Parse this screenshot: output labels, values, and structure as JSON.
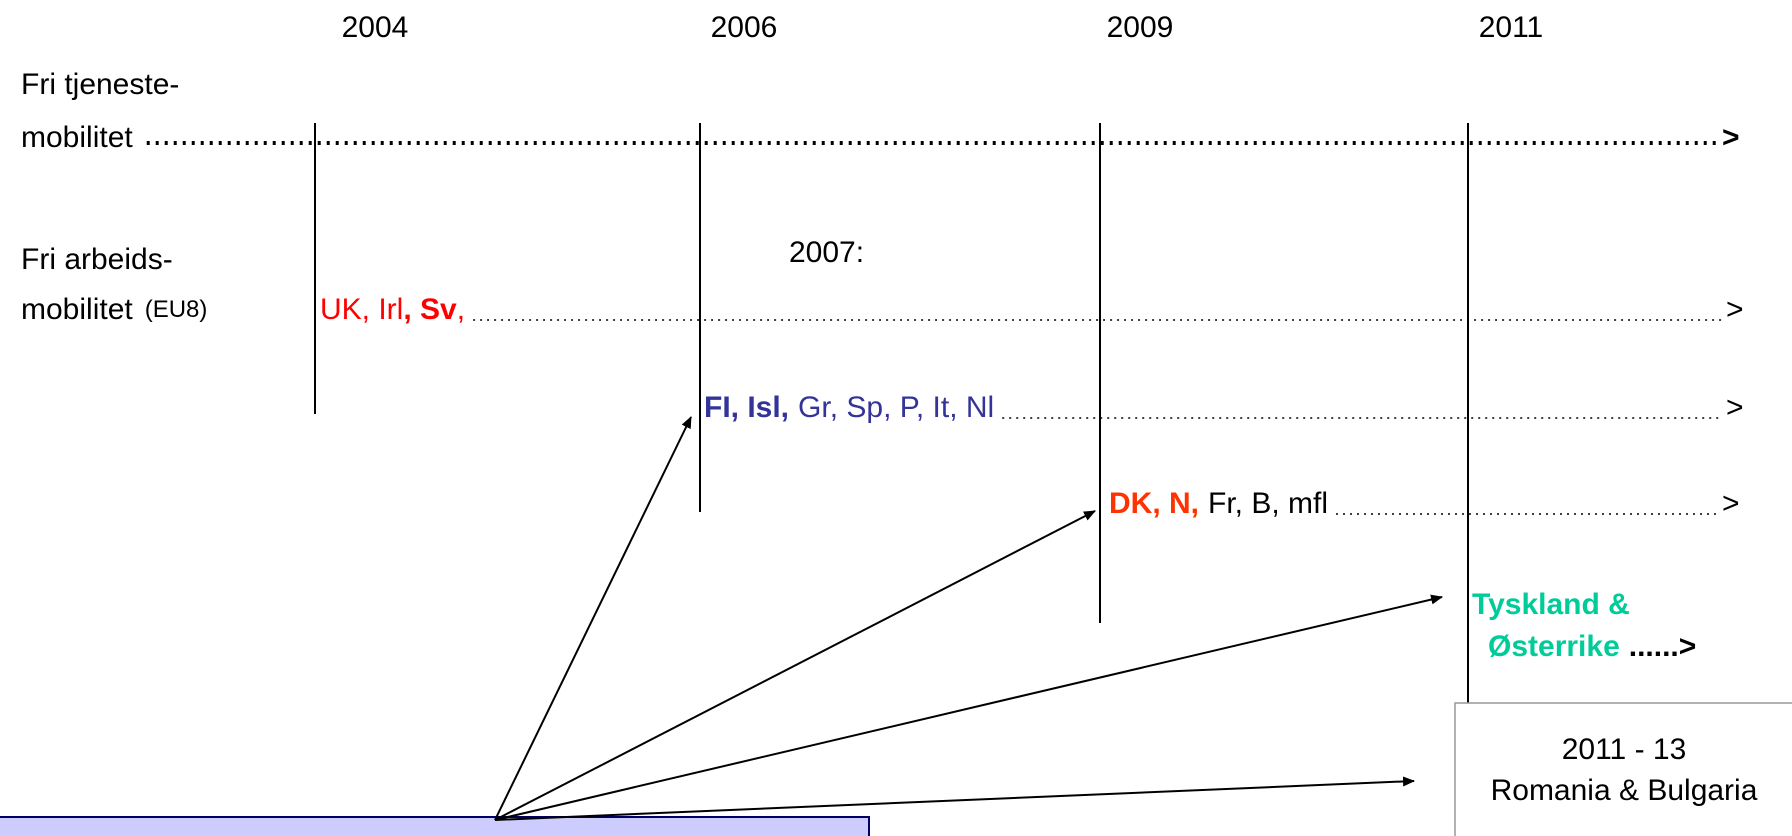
{
  "years": [
    "2004",
    "2006",
    "2009",
    "2011"
  ],
  "service": {
    "label_line1": "Fri tjeneste-",
    "label_line2": "mobilitet",
    "end": ">"
  },
  "labour": {
    "label_line1": "Fri arbeids-",
    "label_line2": "mobilitet",
    "label_note": "(EU8)",
    "year_note": "2007:"
  },
  "rows": [
    {
      "segments": [
        "UK, Irl",
        ", Sv",
        ","
      ],
      "end": ">"
    },
    {
      "segments": [
        "FI, Isl,",
        "Gr, Sp, P, It, Nl"
      ],
      "end": ">"
    },
    {
      "segments": [
        "DK, N,",
        "Fr, B, mfl"
      ],
      "end": ">"
    }
  ],
  "germany": {
    "line1": "Tyskland &",
    "line2": "Østerrike",
    "end": "......>"
  },
  "romania": {
    "line1": "2011 - 13",
    "line2": "Romania & Bulgaria"
  }
}
